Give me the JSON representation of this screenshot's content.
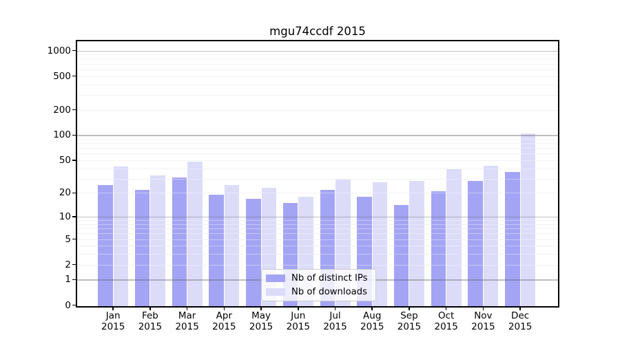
{
  "title": "mgu74ccdf 2015",
  "colors": {
    "ips": "#a4a4f4",
    "downloads": "#dcdcf9",
    "minor_grid": "#ebebeb",
    "minor_grid_over": "rgba(255,255,255,0.38)",
    "major_grid": "rgba(100,100,100,0.42)",
    "axis": "#000000",
    "legend_bg": "rgba(255,255,255,0.8)",
    "legend_border": "#cccccc"
  },
  "y_axis": {
    "tick_labels": [
      "1000",
      "500",
      "200",
      "100",
      "50",
      "20",
      "10",
      "5",
      "2",
      "1",
      "0"
    ],
    "tick_values": [
      1000,
      500,
      200,
      100,
      50,
      20,
      10,
      5,
      2,
      1,
      0
    ]
  },
  "x_axis": {
    "months": [
      "Jan",
      "Feb",
      "Mar",
      "Apr",
      "May",
      "Jun",
      "Jul",
      "Aug",
      "Sep",
      "Oct",
      "Nov",
      "Dec"
    ],
    "year": "2015"
  },
  "legend": {
    "items": [
      {
        "label": "Nb of distinct IPs",
        "color_key": "ips"
      },
      {
        "label": "Nb of downloads",
        "color_key": "downloads"
      }
    ]
  },
  "chart_data": {
    "type": "bar",
    "title": "mgu74ccdf 2015",
    "categories": [
      "Jan 2015",
      "Feb 2015",
      "Mar 2015",
      "Apr 2015",
      "May 2015",
      "Jun 2015",
      "Jul 2015",
      "Aug 2015",
      "Sep 2015",
      "Oct 2015",
      "Nov 2015",
      "Dec 2015"
    ],
    "series": [
      {
        "name": "Nb of distinct IPs",
        "color": "#a4a4f4",
        "values": [
          25,
          22,
          31,
          19,
          17,
          15,
          22,
          18,
          14,
          21,
          28,
          36
        ]
      },
      {
        "name": "Nb of downloads",
        "color": "#dcdcf9",
        "values": [
          42,
          33,
          48,
          25,
          23,
          18,
          29,
          27,
          28,
          39,
          43,
          105
        ]
      }
    ],
    "xlabel": "",
    "ylabel": "",
    "yscale": "log1p",
    "ylim": [
      0,
      1300
    ],
    "yticks": [
      0,
      1,
      2,
      5,
      10,
      20,
      50,
      100,
      200,
      500,
      1000
    ],
    "minor_yticks": [
      3,
      4,
      6,
      7,
      8,
      9,
      30,
      40,
      60,
      70,
      80,
      90,
      300,
      400,
      600,
      700,
      800,
      900
    ],
    "grid": true,
    "grid_position": "above-bars",
    "legend_position": "lower center"
  }
}
